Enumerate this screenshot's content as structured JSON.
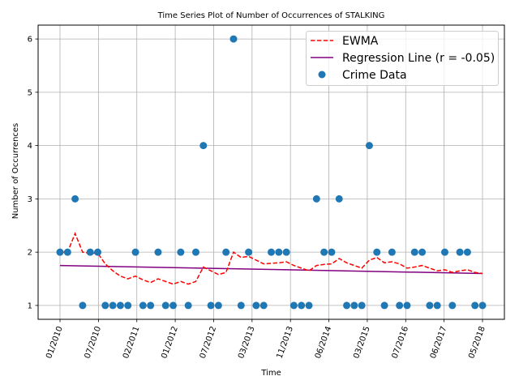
{
  "chart_data": {
    "type": "scatter",
    "title": "Time Series Plot of Number of Occurrences of STALKING",
    "xlabel": "Time",
    "ylabel": "Number of Occurrences",
    "ylim": [
      0.74,
      6.26
    ],
    "yticks": [
      1,
      2,
      3,
      4,
      5,
      6
    ],
    "x_tick_labels": [
      "01/2010",
      "07/2010",
      "02/2011",
      "01/2012",
      "07/2012",
      "03/2013",
      "11/2013",
      "06/2014",
      "03/2015",
      "07/2016",
      "06/2017",
      "05/2018"
    ],
    "grid": true,
    "legend_position": "top-right",
    "legend": [
      "EWMA",
      "Regression Line (r = -0.05)",
      "Crime Data"
    ],
    "series": [
      {
        "name": "Crime Data",
        "kind": "scatter",
        "color": "#1f77b4",
        "values": [
          2,
          2,
          3,
          1,
          2,
          2,
          1,
          1,
          1,
          1,
          2,
          1,
          1,
          2,
          1,
          1,
          2,
          1,
          2,
          4,
          1,
          1,
          2,
          6,
          1,
          2,
          1,
          1,
          2,
          2,
          2,
          1,
          1,
          1,
          3,
          2,
          2,
          3,
          1,
          1,
          1,
          4,
          2,
          1,
          2,
          1,
          1,
          2,
          2,
          1,
          1,
          2,
          1,
          2,
          2,
          1,
          1
        ]
      },
      {
        "name": "EWMA",
        "kind": "line",
        "color": "#ff0000",
        "style": "dashed",
        "values": [
          2.0,
          2.0,
          2.35,
          2.0,
          1.98,
          1.98,
          1.78,
          1.65,
          1.55,
          1.5,
          1.55,
          1.48,
          1.43,
          1.5,
          1.45,
          1.4,
          1.45,
          1.4,
          1.45,
          1.72,
          1.65,
          1.58,
          1.62,
          2.0,
          1.9,
          1.92,
          1.85,
          1.78,
          1.79,
          1.8,
          1.82,
          1.75,
          1.7,
          1.65,
          1.75,
          1.77,
          1.78,
          1.88,
          1.8,
          1.75,
          1.7,
          1.85,
          1.9,
          1.8,
          1.82,
          1.78,
          1.7,
          1.72,
          1.75,
          1.7,
          1.65,
          1.67,
          1.62,
          1.65,
          1.67,
          1.62,
          1.6
        ]
      },
      {
        "name": "Regression Line (r = -0.05)",
        "kind": "line",
        "color": "#800080",
        "style": "solid",
        "values": [
          1.75,
          1.6
        ]
      }
    ]
  }
}
